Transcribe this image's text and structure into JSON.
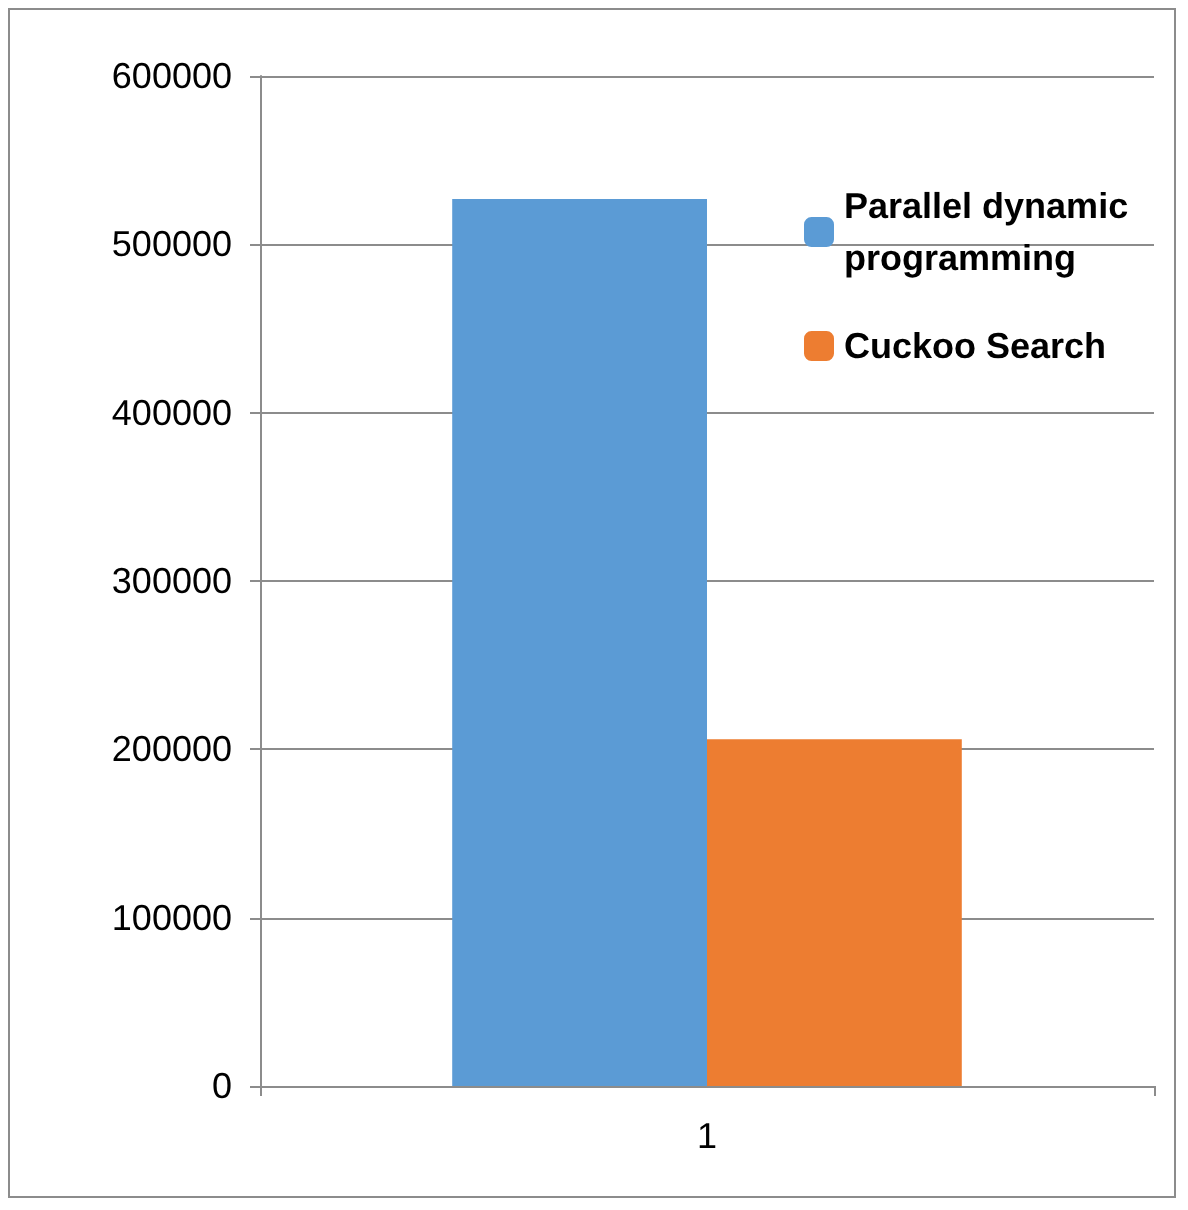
{
  "chart_data": {
    "type": "bar",
    "categories": [
      "1"
    ],
    "series": [
      {
        "name": "Parallel dynamic programming",
        "color": "#5b9bd5",
        "values": [
          527000
        ]
      },
      {
        "name": "Cuckoo Search",
        "color": "#ed7d31",
        "values": [
          206000
        ]
      }
    ],
    "ylim": [
      0,
      600000
    ],
    "yticks": [
      0,
      100000,
      200000,
      300000,
      400000,
      500000,
      600000
    ],
    "grid": "y",
    "legend": "top right"
  }
}
